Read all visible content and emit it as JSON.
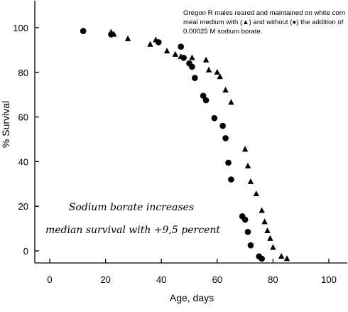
{
  "chart_data": {
    "type": "scatter",
    "title": "",
    "xlabel": "Age, days",
    "ylabel": "% Survival",
    "xlim": [
      0,
      100
    ],
    "ylim": [
      0,
      100
    ],
    "x_ticks": [
      "0",
      "20",
      "40",
      "60",
      "80",
      "100"
    ],
    "y_ticks": [
      "0",
      "20",
      "40",
      "60",
      "80",
      "100"
    ],
    "grid": false,
    "legend_placement": "top-right",
    "note_lines": [
      "Oregon R males reared and maintained on white corn",
      "meal medium with (▲) and without (●) the addition of",
      "0.00025 M sodium borate."
    ],
    "annotation_lines": [
      "Sodium borate increases",
      "median survival with +9,5 percent"
    ],
    "series": [
      {
        "marker": "triangle",
        "color": "#000000",
        "points": [
          [
            22,
            98
          ],
          [
            23,
            97
          ],
          [
            28,
            95
          ],
          [
            36,
            92.5
          ],
          [
            38,
            94.5
          ],
          [
            42,
            89.5
          ],
          [
            45,
            88
          ],
          [
            47,
            87
          ],
          [
            51,
            86.5
          ],
          [
            56,
            85.5
          ],
          [
            57,
            81
          ],
          [
            60,
            80
          ],
          [
            61,
            78
          ],
          [
            63,
            72
          ],
          [
            65,
            66.5
          ],
          [
            70,
            45.5
          ],
          [
            71,
            38
          ],
          [
            72,
            31
          ],
          [
            74,
            25.5
          ],
          [
            76,
            18
          ],
          [
            77,
            13
          ],
          [
            78,
            9
          ],
          [
            79,
            5.5
          ],
          [
            80,
            1.5
          ],
          [
            83,
            -2.5
          ],
          [
            85,
            -3.5
          ]
        ]
      },
      {
        "marker": "circle",
        "color": "#000000",
        "points": [
          [
            12,
            98.5
          ],
          [
            22,
            97
          ],
          [
            39,
            93.5
          ],
          [
            47,
            91.5
          ],
          [
            48,
            86.5
          ],
          [
            50,
            84
          ],
          [
            51,
            82.5
          ],
          [
            52,
            77.5
          ],
          [
            55,
            69.5
          ],
          [
            56,
            67.5
          ],
          [
            59,
            59.5
          ],
          [
            62,
            56
          ],
          [
            63,
            50.5
          ],
          [
            64,
            39.5
          ],
          [
            65,
            32
          ],
          [
            69,
            15.5
          ],
          [
            70,
            14
          ],
          [
            71,
            8.5
          ],
          [
            72,
            2.5
          ],
          [
            75,
            -2.5
          ],
          [
            76,
            -3.5
          ]
        ]
      }
    ]
  }
}
